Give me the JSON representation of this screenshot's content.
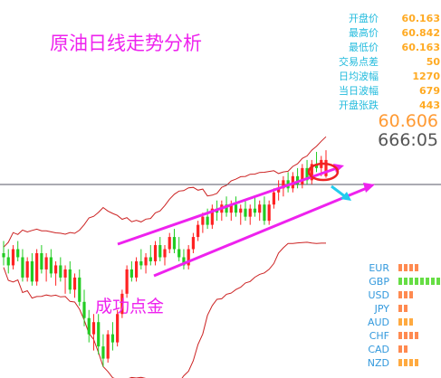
{
  "chart_data": {
    "type": "candlestick",
    "title": "原油日线走势分析",
    "annotation": "成功点金",
    "current_price": "60.606",
    "countdown": "666:05",
    "stats": [
      {
        "label": "开盘价",
        "value": "60.163"
      },
      {
        "label": "最高价",
        "value": "60.842"
      },
      {
        "label": "最低价",
        "value": "60.163"
      },
      {
        "label": "交易点差",
        "value": "50"
      },
      {
        "label": "日均波幅",
        "value": "1270"
      },
      {
        "label": "当日波幅",
        "value": "679"
      },
      {
        "label": "开盘张跌",
        "value": "443"
      }
    ],
    "strength": [
      {
        "currency": "EUR",
        "level": 4,
        "color": "#ff8a50"
      },
      {
        "currency": "GBP",
        "level": 8,
        "color": "#66dd44"
      },
      {
        "currency": "USD",
        "level": 3,
        "color": "#ff8a50"
      },
      {
        "currency": "JPY",
        "level": 2,
        "color": "#ff8a50"
      },
      {
        "currency": "AUD",
        "level": 3,
        "color": "#ffaa40"
      },
      {
        "currency": "CHF",
        "level": 4,
        "color": "#ff8a50"
      },
      {
        "currency": "CAD",
        "level": 2,
        "color": "#ff8a50"
      },
      {
        "currency": "NZD",
        "level": 4,
        "color": "#ffaa40"
      }
    ],
    "candles": [
      {
        "o": 58.3,
        "h": 58.6,
        "l": 58.0,
        "c": 58.2,
        "bull": false
      },
      {
        "o": 58.2,
        "h": 58.4,
        "l": 57.8,
        "c": 58.0,
        "bull": false
      },
      {
        "o": 58.0,
        "h": 58.5,
        "l": 57.9,
        "c": 58.4,
        "bull": true
      },
      {
        "o": 58.4,
        "h": 58.6,
        "l": 58.1,
        "c": 58.2,
        "bull": false
      },
      {
        "o": 58.2,
        "h": 58.4,
        "l": 57.6,
        "c": 57.7,
        "bull": false
      },
      {
        "o": 57.7,
        "h": 58.2,
        "l": 57.6,
        "c": 58.1,
        "bull": true
      },
      {
        "o": 58.1,
        "h": 58.3,
        "l": 57.5,
        "c": 57.6,
        "bull": false
      },
      {
        "o": 57.6,
        "h": 58.4,
        "l": 57.5,
        "c": 58.3,
        "bull": true
      },
      {
        "o": 58.3,
        "h": 58.5,
        "l": 57.8,
        "c": 57.9,
        "bull": false
      },
      {
        "o": 57.9,
        "h": 58.3,
        "l": 57.6,
        "c": 58.2,
        "bull": true
      },
      {
        "o": 58.2,
        "h": 58.4,
        "l": 57.7,
        "c": 57.8,
        "bull": false
      },
      {
        "o": 57.8,
        "h": 58.1,
        "l": 57.5,
        "c": 58.0,
        "bull": true
      },
      {
        "o": 58.0,
        "h": 58.2,
        "l": 57.6,
        "c": 57.7,
        "bull": false
      },
      {
        "o": 57.7,
        "h": 58.0,
        "l": 57.3,
        "c": 57.9,
        "bull": true
      },
      {
        "o": 57.9,
        "h": 58.1,
        "l": 57.3,
        "c": 57.4,
        "bull": false
      },
      {
        "o": 57.4,
        "h": 57.8,
        "l": 57.2,
        "c": 57.7,
        "bull": true
      },
      {
        "o": 57.7,
        "h": 57.9,
        "l": 57.0,
        "c": 57.1,
        "bull": false
      },
      {
        "o": 57.1,
        "h": 57.4,
        "l": 56.5,
        "c": 56.7,
        "bull": false
      },
      {
        "o": 56.7,
        "h": 56.9,
        "l": 56.1,
        "c": 56.3,
        "bull": false
      },
      {
        "o": 56.3,
        "h": 56.8,
        "l": 55.9,
        "c": 56.6,
        "bull": true
      },
      {
        "o": 56.6,
        "h": 56.8,
        "l": 55.8,
        "c": 56.0,
        "bull": false
      },
      {
        "o": 56.0,
        "h": 56.3,
        "l": 55.5,
        "c": 55.7,
        "bull": false
      },
      {
        "o": 55.7,
        "h": 56.4,
        "l": 55.6,
        "c": 56.3,
        "bull": true
      },
      {
        "o": 56.3,
        "h": 56.6,
        "l": 55.9,
        "c": 56.1,
        "bull": false
      },
      {
        "o": 56.1,
        "h": 56.9,
        "l": 56.0,
        "c": 56.8,
        "bull": true
      },
      {
        "o": 56.8,
        "h": 57.4,
        "l": 56.7,
        "c": 57.3,
        "bull": true
      },
      {
        "o": 57.3,
        "h": 58.0,
        "l": 57.2,
        "c": 57.9,
        "bull": true
      },
      {
        "o": 57.9,
        "h": 58.1,
        "l": 57.6,
        "c": 57.7,
        "bull": false
      },
      {
        "o": 57.7,
        "h": 58.2,
        "l": 57.6,
        "c": 58.1,
        "bull": true
      },
      {
        "o": 58.1,
        "h": 58.4,
        "l": 57.9,
        "c": 58.0,
        "bull": false
      },
      {
        "o": 58.0,
        "h": 58.3,
        "l": 57.8,
        "c": 58.2,
        "bull": true
      },
      {
        "o": 58.2,
        "h": 58.5,
        "l": 58.0,
        "c": 58.1,
        "bull": false
      },
      {
        "o": 58.1,
        "h": 58.6,
        "l": 58.0,
        "c": 58.5,
        "bull": true
      },
      {
        "o": 58.5,
        "h": 58.7,
        "l": 58.1,
        "c": 58.2,
        "bull": false
      },
      {
        "o": 58.2,
        "h": 58.5,
        "l": 58.0,
        "c": 58.4,
        "bull": true
      },
      {
        "o": 58.4,
        "h": 58.8,
        "l": 58.3,
        "c": 58.7,
        "bull": true
      },
      {
        "o": 58.7,
        "h": 58.9,
        "l": 58.3,
        "c": 58.4,
        "bull": false
      },
      {
        "o": 58.4,
        "h": 58.7,
        "l": 58.1,
        "c": 58.2,
        "bull": false
      },
      {
        "o": 58.2,
        "h": 58.4,
        "l": 57.9,
        "c": 58.0,
        "bull": false
      },
      {
        "o": 58.0,
        "h": 58.5,
        "l": 57.9,
        "c": 58.4,
        "bull": true
      },
      {
        "o": 58.4,
        "h": 58.8,
        "l": 58.3,
        "c": 58.7,
        "bull": true
      },
      {
        "o": 58.7,
        "h": 59.1,
        "l": 58.6,
        "c": 59.0,
        "bull": true
      },
      {
        "o": 59.0,
        "h": 59.3,
        "l": 58.8,
        "c": 59.2,
        "bull": true
      },
      {
        "o": 59.2,
        "h": 59.4,
        "l": 58.9,
        "c": 59.0,
        "bull": false
      },
      {
        "o": 59.0,
        "h": 59.5,
        "l": 58.9,
        "c": 59.4,
        "bull": true
      },
      {
        "o": 59.4,
        "h": 59.6,
        "l": 59.1,
        "c": 59.3,
        "bull": false
      },
      {
        "o": 59.3,
        "h": 59.6,
        "l": 59.1,
        "c": 59.5,
        "bull": true
      },
      {
        "o": 59.5,
        "h": 59.7,
        "l": 59.2,
        "c": 59.3,
        "bull": false
      },
      {
        "o": 59.3,
        "h": 59.6,
        "l": 59.1,
        "c": 59.5,
        "bull": true
      },
      {
        "o": 59.5,
        "h": 59.7,
        "l": 59.2,
        "c": 59.3,
        "bull": false
      },
      {
        "o": 59.3,
        "h": 59.5,
        "l": 59.0,
        "c": 59.4,
        "bull": true
      },
      {
        "o": 59.4,
        "h": 59.6,
        "l": 59.1,
        "c": 59.2,
        "bull": false
      },
      {
        "o": 59.2,
        "h": 59.5,
        "l": 59.0,
        "c": 59.4,
        "bull": true
      },
      {
        "o": 59.4,
        "h": 59.7,
        "l": 59.2,
        "c": 59.3,
        "bull": false
      },
      {
        "o": 59.3,
        "h": 59.6,
        "l": 59.1,
        "c": 59.5,
        "bull": true
      },
      {
        "o": 59.5,
        "h": 59.7,
        "l": 59.0,
        "c": 59.1,
        "bull": false
      },
      {
        "o": 59.1,
        "h": 59.6,
        "l": 59.0,
        "c": 59.5,
        "bull": true
      },
      {
        "o": 59.5,
        "h": 59.9,
        "l": 59.4,
        "c": 59.8,
        "bull": true
      },
      {
        "o": 59.8,
        "h": 60.1,
        "l": 59.6,
        "c": 59.9,
        "bull": true
      },
      {
        "o": 59.9,
        "h": 60.2,
        "l": 59.7,
        "c": 60.1,
        "bull": true
      },
      {
        "o": 60.1,
        "h": 60.3,
        "l": 59.8,
        "c": 59.9,
        "bull": false
      },
      {
        "o": 59.9,
        "h": 60.3,
        "l": 59.8,
        "c": 60.2,
        "bull": true
      },
      {
        "o": 60.2,
        "h": 60.4,
        "l": 59.9,
        "c": 60.0,
        "bull": false
      },
      {
        "o": 60.0,
        "h": 60.5,
        "l": 59.9,
        "c": 60.4,
        "bull": true
      },
      {
        "o": 60.4,
        "h": 60.6,
        "l": 60.0,
        "c": 60.1,
        "bull": false
      },
      {
        "o": 60.1,
        "h": 60.6,
        "l": 60.0,
        "c": 60.5,
        "bull": true
      },
      {
        "o": 60.5,
        "h": 60.8,
        "l": 60.3,
        "c": 60.4,
        "bull": false
      },
      {
        "o": 60.4,
        "h": 60.7,
        "l": 60.2,
        "c": 60.6,
        "bull": true
      },
      {
        "o": 60.2,
        "h": 60.84,
        "l": 60.16,
        "c": 60.6,
        "bull": true
      }
    ]
  }
}
